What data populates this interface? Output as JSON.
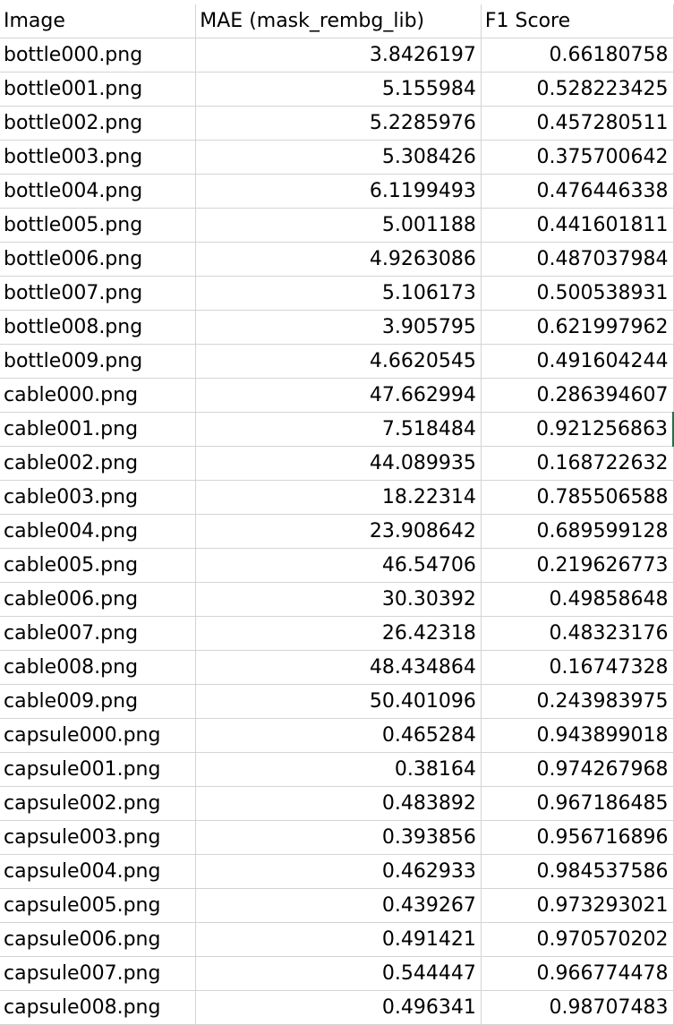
{
  "sheet": {
    "headers": [
      "Image",
      "MAE (mask_rembg_lib)",
      "F1 Score"
    ],
    "rows": [
      [
        "bottle000.png",
        "3.8426197",
        "0.66180758"
      ],
      [
        "bottle001.png",
        "5.155984",
        "0.528223425"
      ],
      [
        "bottle002.png",
        "5.2285976",
        "0.457280511"
      ],
      [
        "bottle003.png",
        "5.308426",
        "0.375700642"
      ],
      [
        "bottle004.png",
        "6.1199493",
        "0.476446338"
      ],
      [
        "bottle005.png",
        "5.001188",
        "0.441601811"
      ],
      [
        "bottle006.png",
        "4.9263086",
        "0.487037984"
      ],
      [
        "bottle007.png",
        "5.106173",
        "0.500538931"
      ],
      [
        "bottle008.png",
        "3.905795",
        "0.621997962"
      ],
      [
        "bottle009.png",
        "4.6620545",
        "0.491604244"
      ],
      [
        "cable000.png",
        "47.662994",
        "0.286394607"
      ],
      [
        "cable001.png",
        "7.518484",
        "0.921256863"
      ],
      [
        "cable002.png",
        "44.089935",
        "0.168722632"
      ],
      [
        "cable003.png",
        "18.22314",
        "0.785506588"
      ],
      [
        "cable004.png",
        "23.908642",
        "0.689599128"
      ],
      [
        "cable005.png",
        "46.54706",
        "0.219626773"
      ],
      [
        "cable006.png",
        "30.30392",
        "0.49858648"
      ],
      [
        "cable007.png",
        "26.42318",
        "0.48323176"
      ],
      [
        "cable008.png",
        "48.434864",
        "0.16747328"
      ],
      [
        "cable009.png",
        "50.401096",
        "0.243983975"
      ],
      [
        "capsule000.png",
        "0.465284",
        "0.943899018"
      ],
      [
        "capsule001.png",
        "0.38164",
        "0.974267968"
      ],
      [
        "capsule002.png",
        "0.483892",
        "0.967186485"
      ],
      [
        "capsule003.png",
        "0.393856",
        "0.956716896"
      ],
      [
        "capsule004.png",
        "0.462933",
        "0.984537586"
      ],
      [
        "capsule005.png",
        "0.439267",
        "0.973293021"
      ],
      [
        "capsule006.png",
        "0.491421",
        "0.970570202"
      ],
      [
        "capsule007.png",
        "0.544447",
        "0.966774478"
      ],
      [
        "capsule008.png",
        "0.496341",
        "0.98707483"
      ]
    ]
  }
}
